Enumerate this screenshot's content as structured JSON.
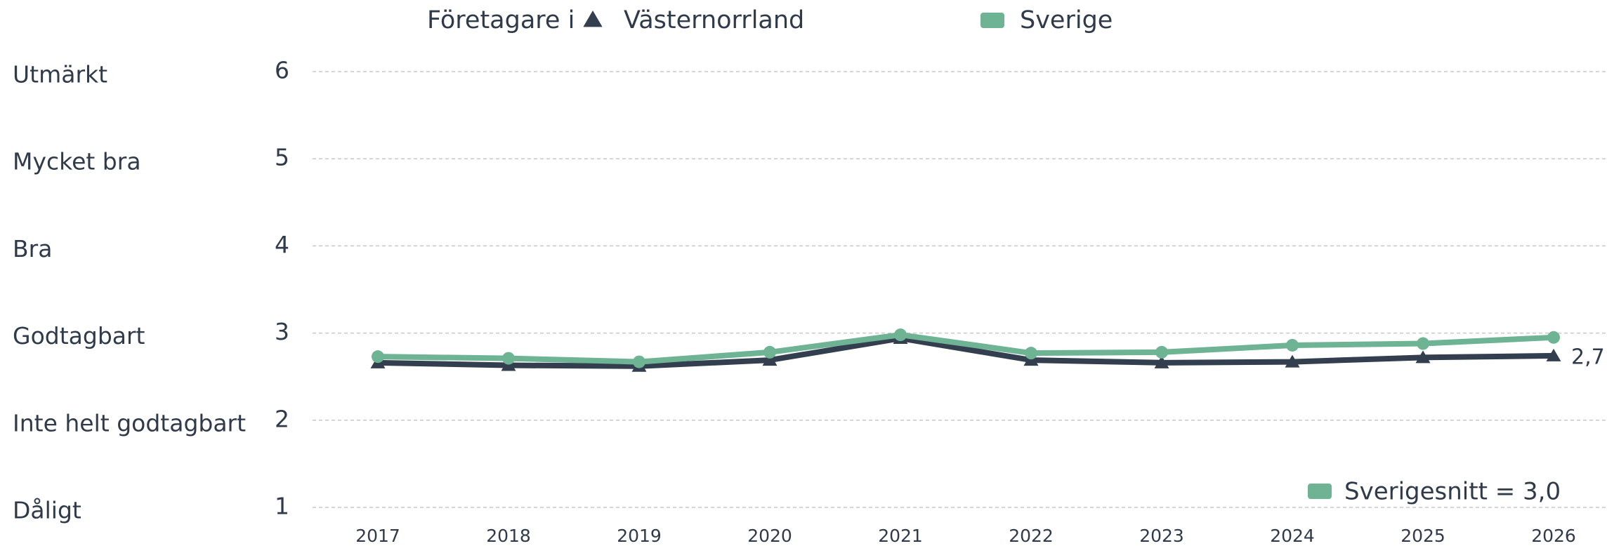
{
  "chart_data": {
    "type": "line",
    "legend_title": "Företagare i",
    "categories": [
      "2017",
      "2018",
      "2019",
      "2020",
      "2021",
      "2022",
      "2023",
      "2024",
      "2025",
      "2026"
    ],
    "series": [
      {
        "name": "Västernorrland",
        "color": "#333f4f",
        "marker": "triangle",
        "values": [
          2.66,
          2.63,
          2.62,
          2.69,
          2.94,
          2.69,
          2.66,
          2.67,
          2.72,
          2.74
        ],
        "value_labels": [
          null,
          null,
          null,
          null,
          null,
          null,
          null,
          null,
          null,
          "2,7"
        ]
      },
      {
        "name": "Sverige",
        "color": "#6db394",
        "marker": "circle",
        "values": [
          2.73,
          2.71,
          2.67,
          2.78,
          2.98,
          2.77,
          2.78,
          2.86,
          2.88,
          2.95
        ]
      }
    ],
    "ylim": [
      1,
      6
    ],
    "yticks": [
      1,
      2,
      3,
      4,
      5,
      6
    ],
    "rating_labels": [
      "Dåligt",
      "Inte helt godtagbart",
      "Godtagbart",
      "Bra",
      "Mycket bra",
      "Utmärkt"
    ],
    "annotation": {
      "text": "Sverigesnitt = 3,0",
      "color": "#6db394"
    },
    "grid": true
  }
}
